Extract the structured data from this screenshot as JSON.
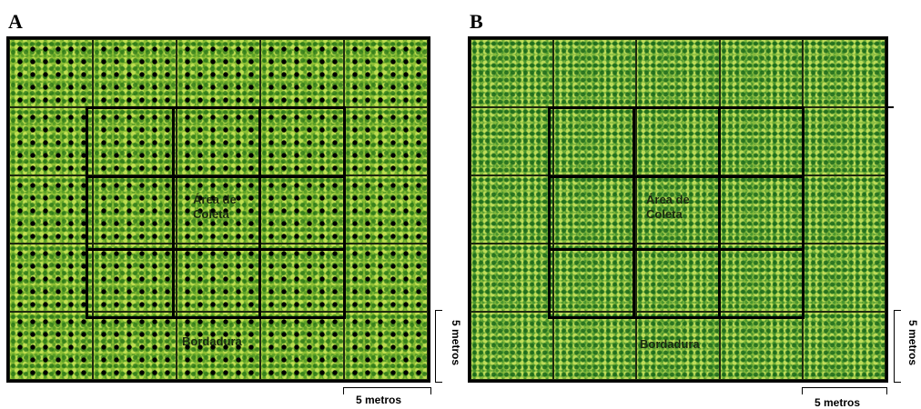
{
  "panels": [
    {
      "letter": "A",
      "center_label": "Área de\nColeta",
      "border_label": "Bordadura",
      "pattern": "dotted-plants",
      "colors": {
        "base": "#8dbf35",
        "dots": "#000000",
        "grid": "#000000"
      }
    },
    {
      "letter": "B",
      "center_label": "Área de\nColeta",
      "border_label": "Bordadura",
      "pattern": "dense-plants",
      "colors": {
        "base": "#86bb3d",
        "grid": "#000000"
      }
    }
  ],
  "grid": {
    "rows": 5,
    "cols": 5,
    "collection_area": "inner 3x3"
  },
  "dimension_labels": {
    "width": "5 metros",
    "height": "5 metros"
  }
}
